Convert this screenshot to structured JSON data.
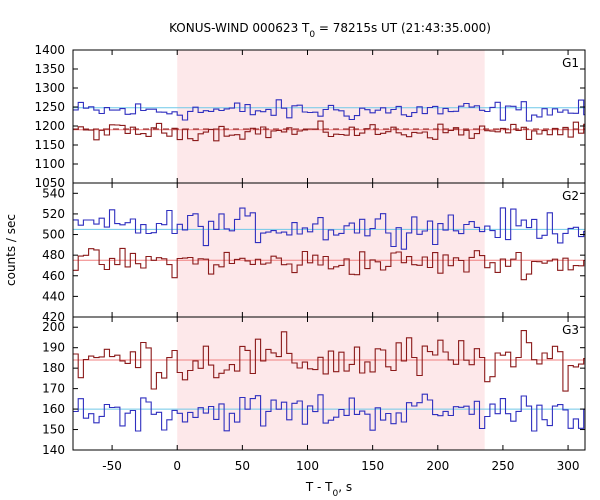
{
  "chart_data": {
    "type": "line",
    "title_main": "KONUS-WIND 000623 T",
    "title_sub": "0",
    "title_rest": " = 78215s UT (21:43:35.000)",
    "xlabel_main": "T - T",
    "xlabel_sub": "0",
    "xlabel_rest": ", s",
    "ylabel": "counts / sec",
    "xlim": [
      -80,
      313
    ],
    "x_ticks": [
      -50,
      0,
      50,
      100,
      150,
      200,
      250,
      300
    ],
    "highlight_interval": [
      0,
      236
    ],
    "bin_width": 4,
    "colors": {
      "blue": "#2f2fbf",
      "red": "#8b1a1a",
      "bg_level_blue": "#6fc8e8",
      "bg_level_red": "#f08080",
      "highlight": "#fde8ea"
    },
    "panels": [
      {
        "name": "G1",
        "ylim": [
          1050,
          1400
        ],
        "yticks": [
          1050,
          1100,
          1150,
          1200,
          1250,
          1300,
          1350,
          1400
        ],
        "series": [
          {
            "color": "blue",
            "background_level": 1248,
            "mean": 1240,
            "amp": 20
          },
          {
            "color": "red",
            "background_level": 1190,
            "dashed_level": 1192,
            "mean": 1185,
            "amp": 16
          }
        ]
      },
      {
        "name": "G2",
        "ylim": [
          420,
          550
        ],
        "yticks": [
          420,
          440,
          460,
          480,
          500,
          520,
          540
        ],
        "series": [
          {
            "color": "blue",
            "background_level": 505,
            "mean": 508,
            "amp": 12
          },
          {
            "color": "red",
            "background_level": 475,
            "mean": 473,
            "amp": 10
          }
        ]
      },
      {
        "name": "G3",
        "ylim": [
          140,
          205
        ],
        "yticks": [
          140,
          150,
          160,
          170,
          180,
          190,
          200
        ],
        "series": [
          {
            "color": "red",
            "background_level": 184,
            "mean": 184,
            "amp": 9
          },
          {
            "color": "blue",
            "background_level": 160,
            "mean": 159,
            "amp": 7
          }
        ]
      }
    ]
  }
}
